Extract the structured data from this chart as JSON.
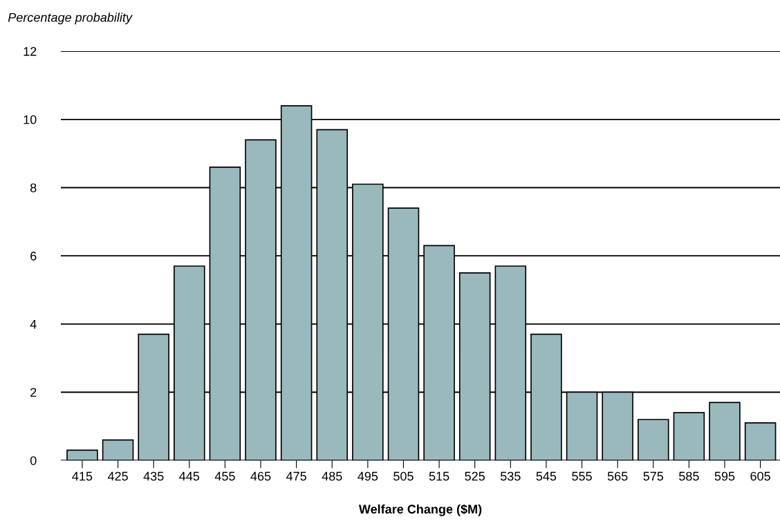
{
  "chart_data": {
    "type": "bar",
    "xlabel": "Welfare Change ($M)",
    "ylabel": "Percentage probability",
    "categories": [
      "415",
      "425",
      "435",
      "445",
      "455",
      "465",
      "475",
      "485",
      "495",
      "505",
      "515",
      "525",
      "535",
      "545",
      "555",
      "565",
      "575",
      "585",
      "595",
      "605"
    ],
    "values": [
      0.3,
      0.6,
      3.7,
      5.7,
      8.6,
      9.4,
      10.4,
      9.7,
      8.1,
      7.4,
      6.3,
      5.5,
      5.7,
      3.7,
      2.0,
      2.0,
      1.2,
      1.4,
      1.7,
      1.1
    ],
    "color": "#9ab9bd",
    "ylim": [
      0,
      12
    ],
    "yticks": [
      0,
      2,
      4,
      6,
      8,
      10,
      12
    ],
    "grid": "y"
  }
}
